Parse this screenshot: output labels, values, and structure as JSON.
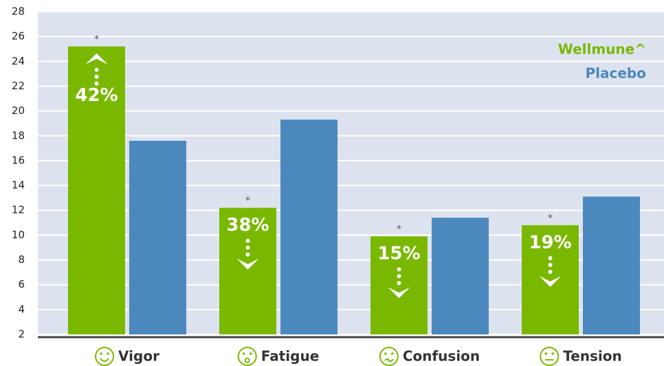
{
  "chart_data": {
    "type": "bar",
    "categories": [
      "Vigor",
      "Fatigue",
      "Confusion",
      "Tension"
    ],
    "series": [
      {
        "name": "Wellmune^",
        "color": "#7ab800",
        "values": [
          25.2,
          12.2,
          9.9,
          10.8
        ]
      },
      {
        "name": "Placebo",
        "color": "#4a88be",
        "values": [
          17.6,
          19.3,
          11.4,
          13.1
        ]
      }
    ],
    "change_labels": [
      "42%",
      "38%",
      "15%",
      "19%"
    ],
    "change_direction": [
      "up",
      "down",
      "down",
      "down"
    ],
    "significance_marks": [
      "*",
      "*",
      "*",
      "*"
    ],
    "ylim": [
      2,
      28
    ],
    "yticks": [
      2,
      4,
      6,
      8,
      10,
      12,
      14,
      16,
      18,
      20,
      22,
      24,
      26,
      28
    ],
    "grid": true,
    "legend": "top-right"
  }
}
